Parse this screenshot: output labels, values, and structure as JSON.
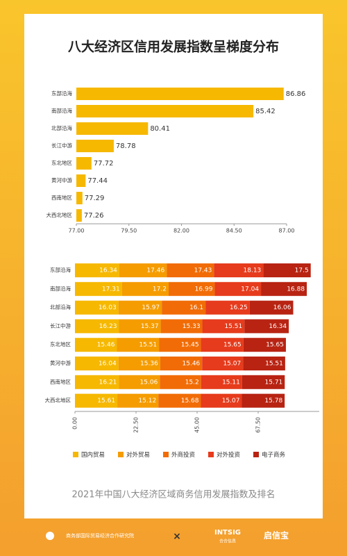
{
  "chart_data": [
    {
      "type": "bar",
      "orientation": "horizontal",
      "title": "八大经济区信用发展指数呈梯度分布",
      "categories": [
        "东部沿海",
        "南部沿海",
        "北部沿海",
        "长江中游",
        "东北地区",
        "黄河中游",
        "西南地区",
        "大西北地区"
      ],
      "values": [
        86.86,
        85.42,
        80.41,
        78.78,
        77.72,
        77.44,
        77.29,
        77.26
      ],
      "color": "#f6b800",
      "xlim": [
        77,
        87
      ],
      "xticks": [
        {
          "value": 77,
          "label": "77.00"
        },
        {
          "value": 79.5,
          "label": "79.50"
        },
        {
          "value": 82,
          "label": "82.00"
        },
        {
          "value": 84.5,
          "label": "84.50"
        },
        {
          "value": 87,
          "label": "87.00"
        }
      ]
    },
    {
      "type": "stacked-bar",
      "orientation": "horizontal",
      "categories": [
        "东部沿海",
        "南部沿海",
        "北部沿海",
        "长江中游",
        "东北地区",
        "黄河中游",
        "西南地区",
        "大西北地区"
      ],
      "series": [
        {
          "name": "国内贸易",
          "color": "#f6b800",
          "values": [
            16.34,
            17.31,
            16.03,
            16.23,
            15.46,
            16.04,
            16.21,
            15.61
          ]
        },
        {
          "name": "对外贸易",
          "color": "#f59c00",
          "values": [
            17.46,
            17.2,
            15.97,
            15.37,
            15.51,
            15.36,
            15.06,
            15.12
          ]
        },
        {
          "name": "外商投资",
          "color": "#f16c06",
          "values": [
            17.43,
            16.99,
            16.1,
            15.33,
            15.45,
            15.46,
            15.2,
            15.68
          ]
        },
        {
          "name": "对外投资",
          "color": "#e63b1c",
          "values": [
            18.13,
            17.04,
            16.25,
            15.51,
            15.65,
            15.07,
            15.11,
            15.07
          ]
        },
        {
          "name": "电子商务",
          "color": "#b82312",
          "values": [
            17.5,
            16.88,
            16.06,
            16.34,
            15.65,
            15.51,
            15.71,
            15.78
          ]
        }
      ],
      "xlim": [
        0,
        90
      ],
      "xticks": [
        {
          "value": 0,
          "label": "0.00"
        },
        {
          "value": 22.5,
          "label": "22.50"
        },
        {
          "value": 45,
          "label": "45.00"
        },
        {
          "value": 67.5,
          "label": "67.50"
        }
      ],
      "legend": "bottom",
      "caption": "2021年中国八大经济区域商务信用发展指数及排名"
    }
  ],
  "footer": {
    "org": "商务部国际贸易经济合作研究院",
    "cross": "×",
    "brand": "INTSIG",
    "brand_cn": "合合信息",
    "product": "启信宝"
  }
}
